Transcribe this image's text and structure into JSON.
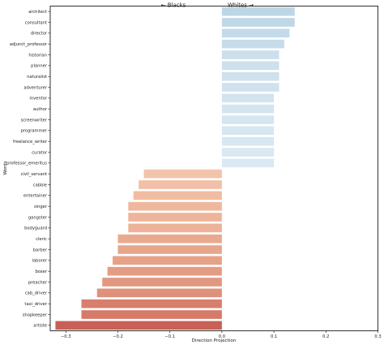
{
  "chart_data": {
    "type": "bar",
    "orientation": "horizontal",
    "xlabel": "Direction Projection",
    "ylabel": "Words",
    "header_left": "← Blacks",
    "header_right": "Whites →",
    "xlim": [
      -0.33,
      0.3
    ],
    "xticks": [
      -0.3,
      -0.2,
      -0.1,
      0.0,
      0.1,
      0.2,
      0.3
    ],
    "xtick_labels": [
      "−0.3",
      "−0.2",
      "−0.1",
      "0.0",
      "0.1",
      "0.2",
      "0.3"
    ],
    "categories": [
      "architect",
      "consultant",
      "director",
      "adjunct_professor",
      "historian",
      "planner",
      "naturalist",
      "adventurer",
      "inventor",
      "author",
      "screenwriter",
      "programmer",
      "freelance_writer",
      "curator",
      "professor_emeritus",
      "civil_servant",
      "cabbie",
      "entertainer",
      "singer",
      "gangster",
      "bodyguard",
      "cleric",
      "barber",
      "laborer",
      "boxer",
      "preacher",
      "cab_driver",
      "taxi_driver",
      "shopkeeper",
      "artiste"
    ],
    "values": [
      0.14,
      0.14,
      0.13,
      0.12,
      0.11,
      0.11,
      0.11,
      0.11,
      0.1,
      0.1,
      0.1,
      0.1,
      0.1,
      0.1,
      0.1,
      -0.15,
      -0.16,
      -0.17,
      -0.18,
      -0.18,
      -0.18,
      -0.2,
      -0.2,
      -0.21,
      -0.22,
      -0.23,
      -0.24,
      -0.27,
      -0.27,
      -0.32
    ],
    "colors": [
      "#bcd6e6",
      "#bfd8e7",
      "#c3dae9",
      "#c7dcea",
      "#cbdfec",
      "#cde0ed",
      "#cfe1ed",
      "#d0e2ee",
      "#d3e4ef",
      "#d4e5ef",
      "#d6e6f0",
      "#d7e7f0",
      "#d8e7f1",
      "#d9e8f1",
      "#dae9f2",
      "#f2c4ac",
      "#f1c0a7",
      "#f0bca2",
      "#efb89d",
      "#eeb59a",
      "#edb297",
      "#e9a98f",
      "#e7a68c",
      "#e6a288",
      "#e49d84",
      "#e29880",
      "#de917b",
      "#d87e6c",
      "#d67a69",
      "#c86055"
    ],
    "grid": false
  }
}
